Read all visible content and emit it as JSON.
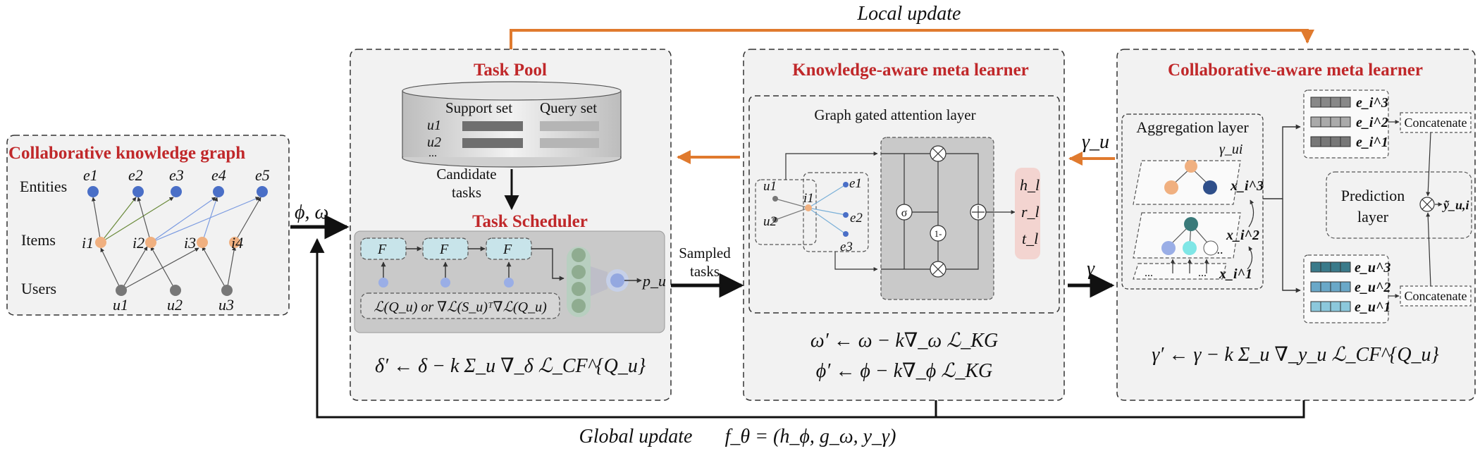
{
  "title_local": "Local update",
  "title_global": "Global update",
  "global_formula": "f_θ = (h_ϕ, g_ω, y_γ)",
  "ckg": {
    "title": "Collaborative knowledge graph",
    "row_entities": "Entities",
    "row_items": "Items",
    "row_users": "Users",
    "entities": [
      "e1",
      "e2",
      "e3",
      "e4",
      "e5"
    ],
    "items": [
      "i1",
      "i2",
      "i3",
      "i4"
    ],
    "users": [
      "u1",
      "u2",
      "u3"
    ]
  },
  "phi_omega": "ϕ, ω",
  "task_pool": {
    "title": "Task Pool",
    "support_set": "Support set",
    "query_set": "Query set",
    "row_u1": "u1",
    "row_u2": "u2",
    "dots": "...",
    "candidate_line1": "Candidate",
    "candidate_line2": "tasks",
    "scheduler_title": "Task Scheduler",
    "f_label": "F",
    "pu": "p_u",
    "loss_formula": "ℒ(Q_u) or ∇ℒ(S_u)ᵀ∇ℒ(Q_u)",
    "update_formula": "δ′ ← δ − k Σ_u ∇_δ ℒ_CF^{Q_u}"
  },
  "sampled": {
    "line1": "Sampled",
    "line2": "tasks"
  },
  "kml": {
    "title": "Knowledge-aware meta learner",
    "layer_title": "Graph gated attention layer",
    "nodes": [
      "u1",
      "u2",
      "i1",
      "e1",
      "e2",
      "e3"
    ],
    "sigma": "σ",
    "one_minus": "1-",
    "outputs": [
      "h_l",
      "r_l",
      "t_l"
    ],
    "update1": "ω′ ← ω − k∇_ω ℒ_KG",
    "update2": "ϕ′ ← ϕ − k∇_ϕ ℒ_KG"
  },
  "gamma_u": "γ_u",
  "gamma": "γ",
  "cml": {
    "title": "Collaborative-aware meta learner",
    "aggregation": "Aggregation layer",
    "gamma_ui": "γ_ui",
    "x_labels": [
      "x_i^3",
      "x_i^2",
      "x_i^1"
    ],
    "e_i_labels": [
      "e_i^3",
      "e_i^2",
      "e_i^1"
    ],
    "e_u_labels": [
      "e_u^3",
      "e_u^2",
      "e_u^1"
    ],
    "concatenate": "Concatenate",
    "prediction_line1": "Prediction",
    "prediction_line2": "layer",
    "y_hat": "ỹ_u,i",
    "dots": "...",
    "update": "γ′ ← γ − k Σ_u ∇_y_u ℒ_CF^{Q_u}"
  },
  "colors": {
    "title_red": "#c0282a",
    "orange_arrow": "#e07a2e",
    "entity_blue": "#4a6fc7",
    "item_orange": "#f0b080",
    "user_gray": "#777777"
  }
}
